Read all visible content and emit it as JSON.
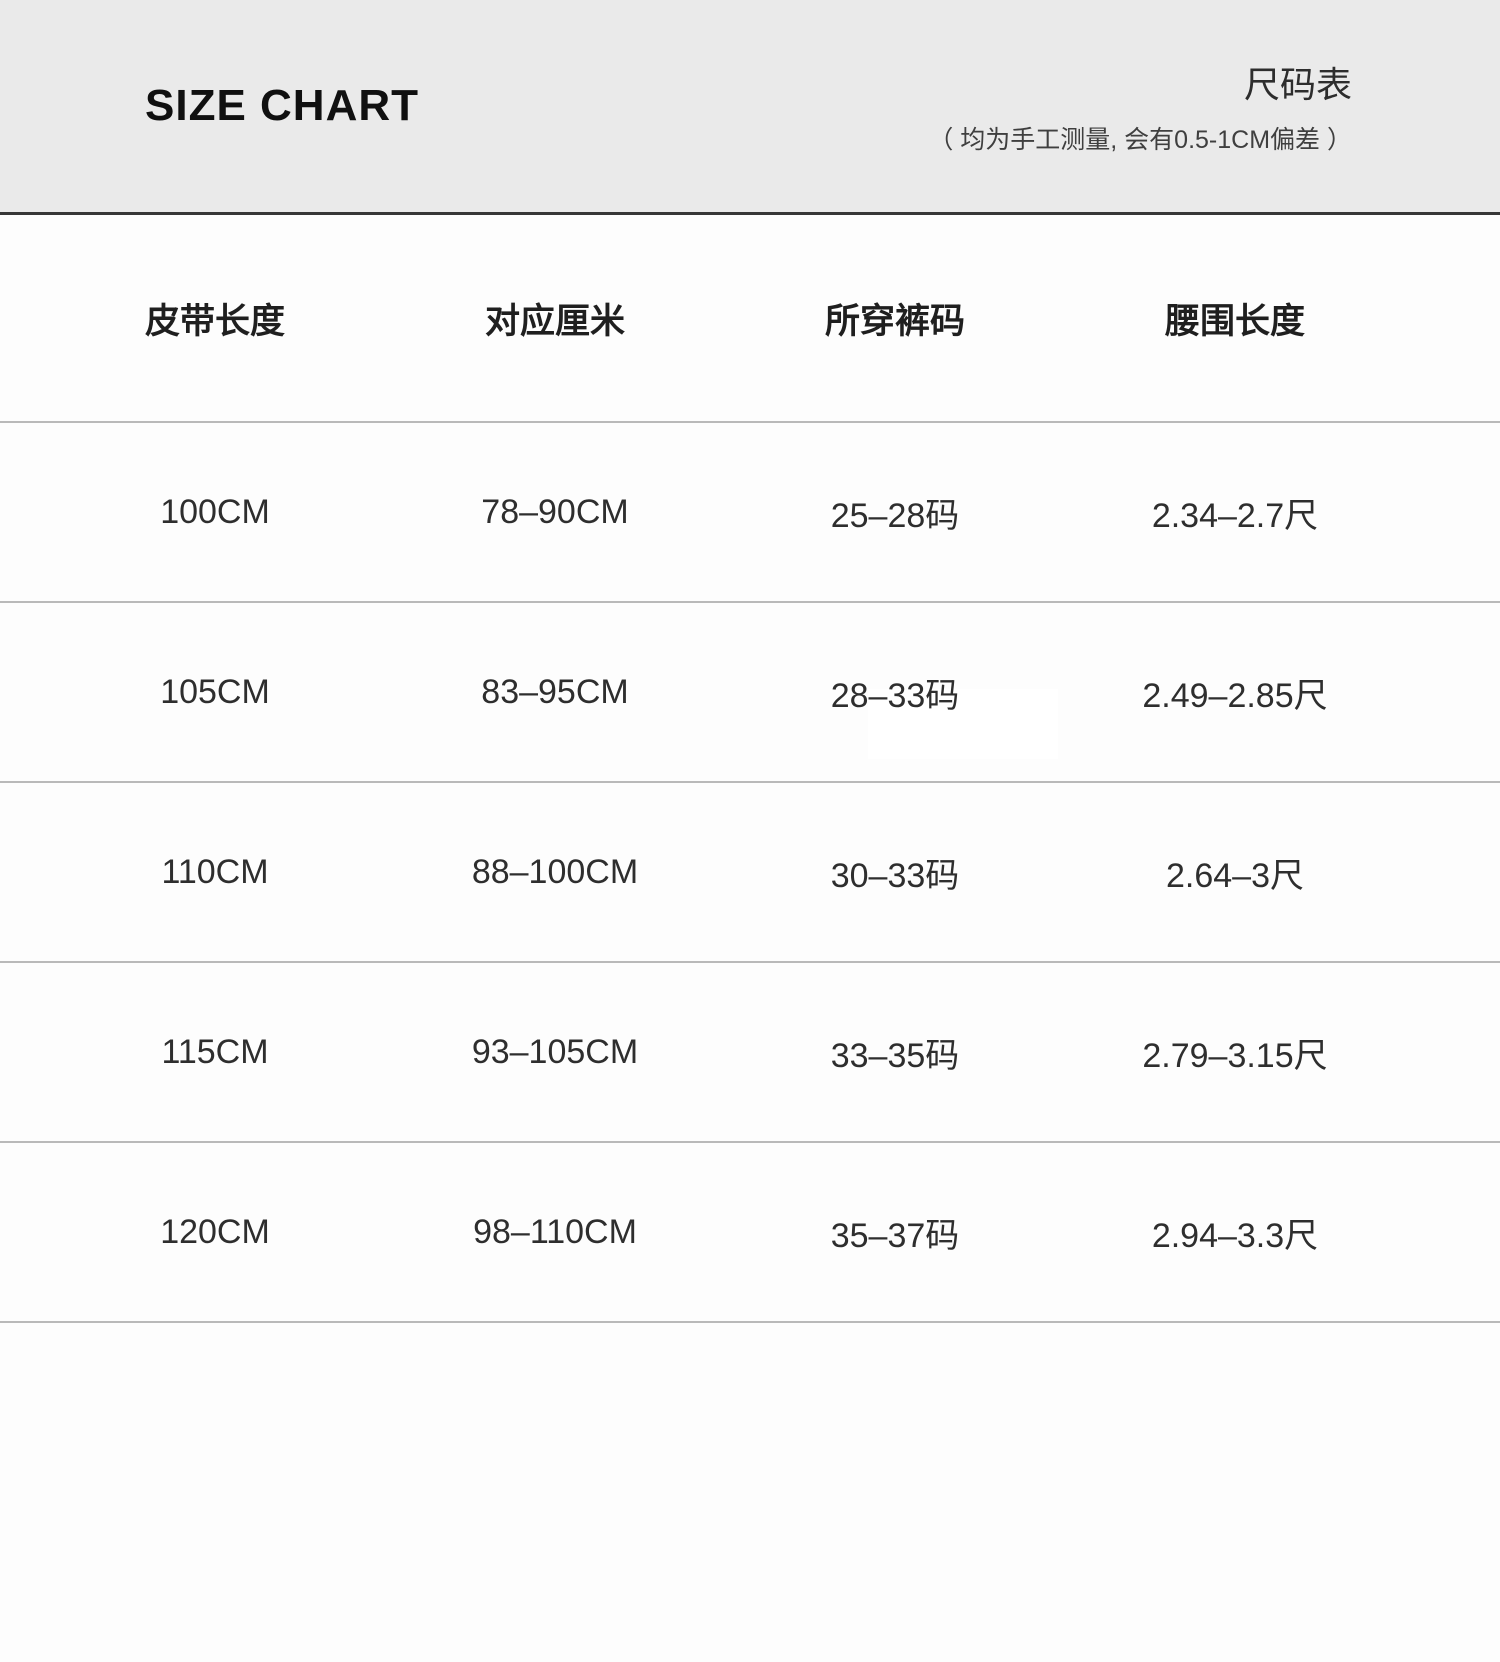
{
  "header": {
    "title_en": "SIZE CHART",
    "title_zh": "尺码表",
    "note": "（ 均为手工测量, 会有0.5-1CM偏差 ）"
  },
  "chart_data": {
    "type": "table",
    "title": "SIZE CHART / 尺码表",
    "columns": [
      "皮带长度",
      "对应厘米",
      "所穿裤码",
      "腰围长度"
    ],
    "rows": [
      [
        "100CM",
        "78–90CM",
        "25–28码",
        "2.34–2.7尺"
      ],
      [
        "105CM",
        "83–95CM",
        "28–33码",
        "2.49–2.85尺"
      ],
      [
        "110CM",
        "88–100CM",
        "30–33码",
        "2.64–3尺"
      ],
      [
        "115CM",
        "93–105CM",
        "33–35码",
        "2.79–3.15尺"
      ],
      [
        "120CM",
        "98–110CM",
        "35–37码",
        "2.94–3.3尺"
      ]
    ]
  },
  "colors": {
    "header_band": "#eaeaea",
    "band_border": "#373737",
    "row_divider": "#b9b9b9",
    "background": "#fdfdfd",
    "text": "#2e2e2e"
  }
}
